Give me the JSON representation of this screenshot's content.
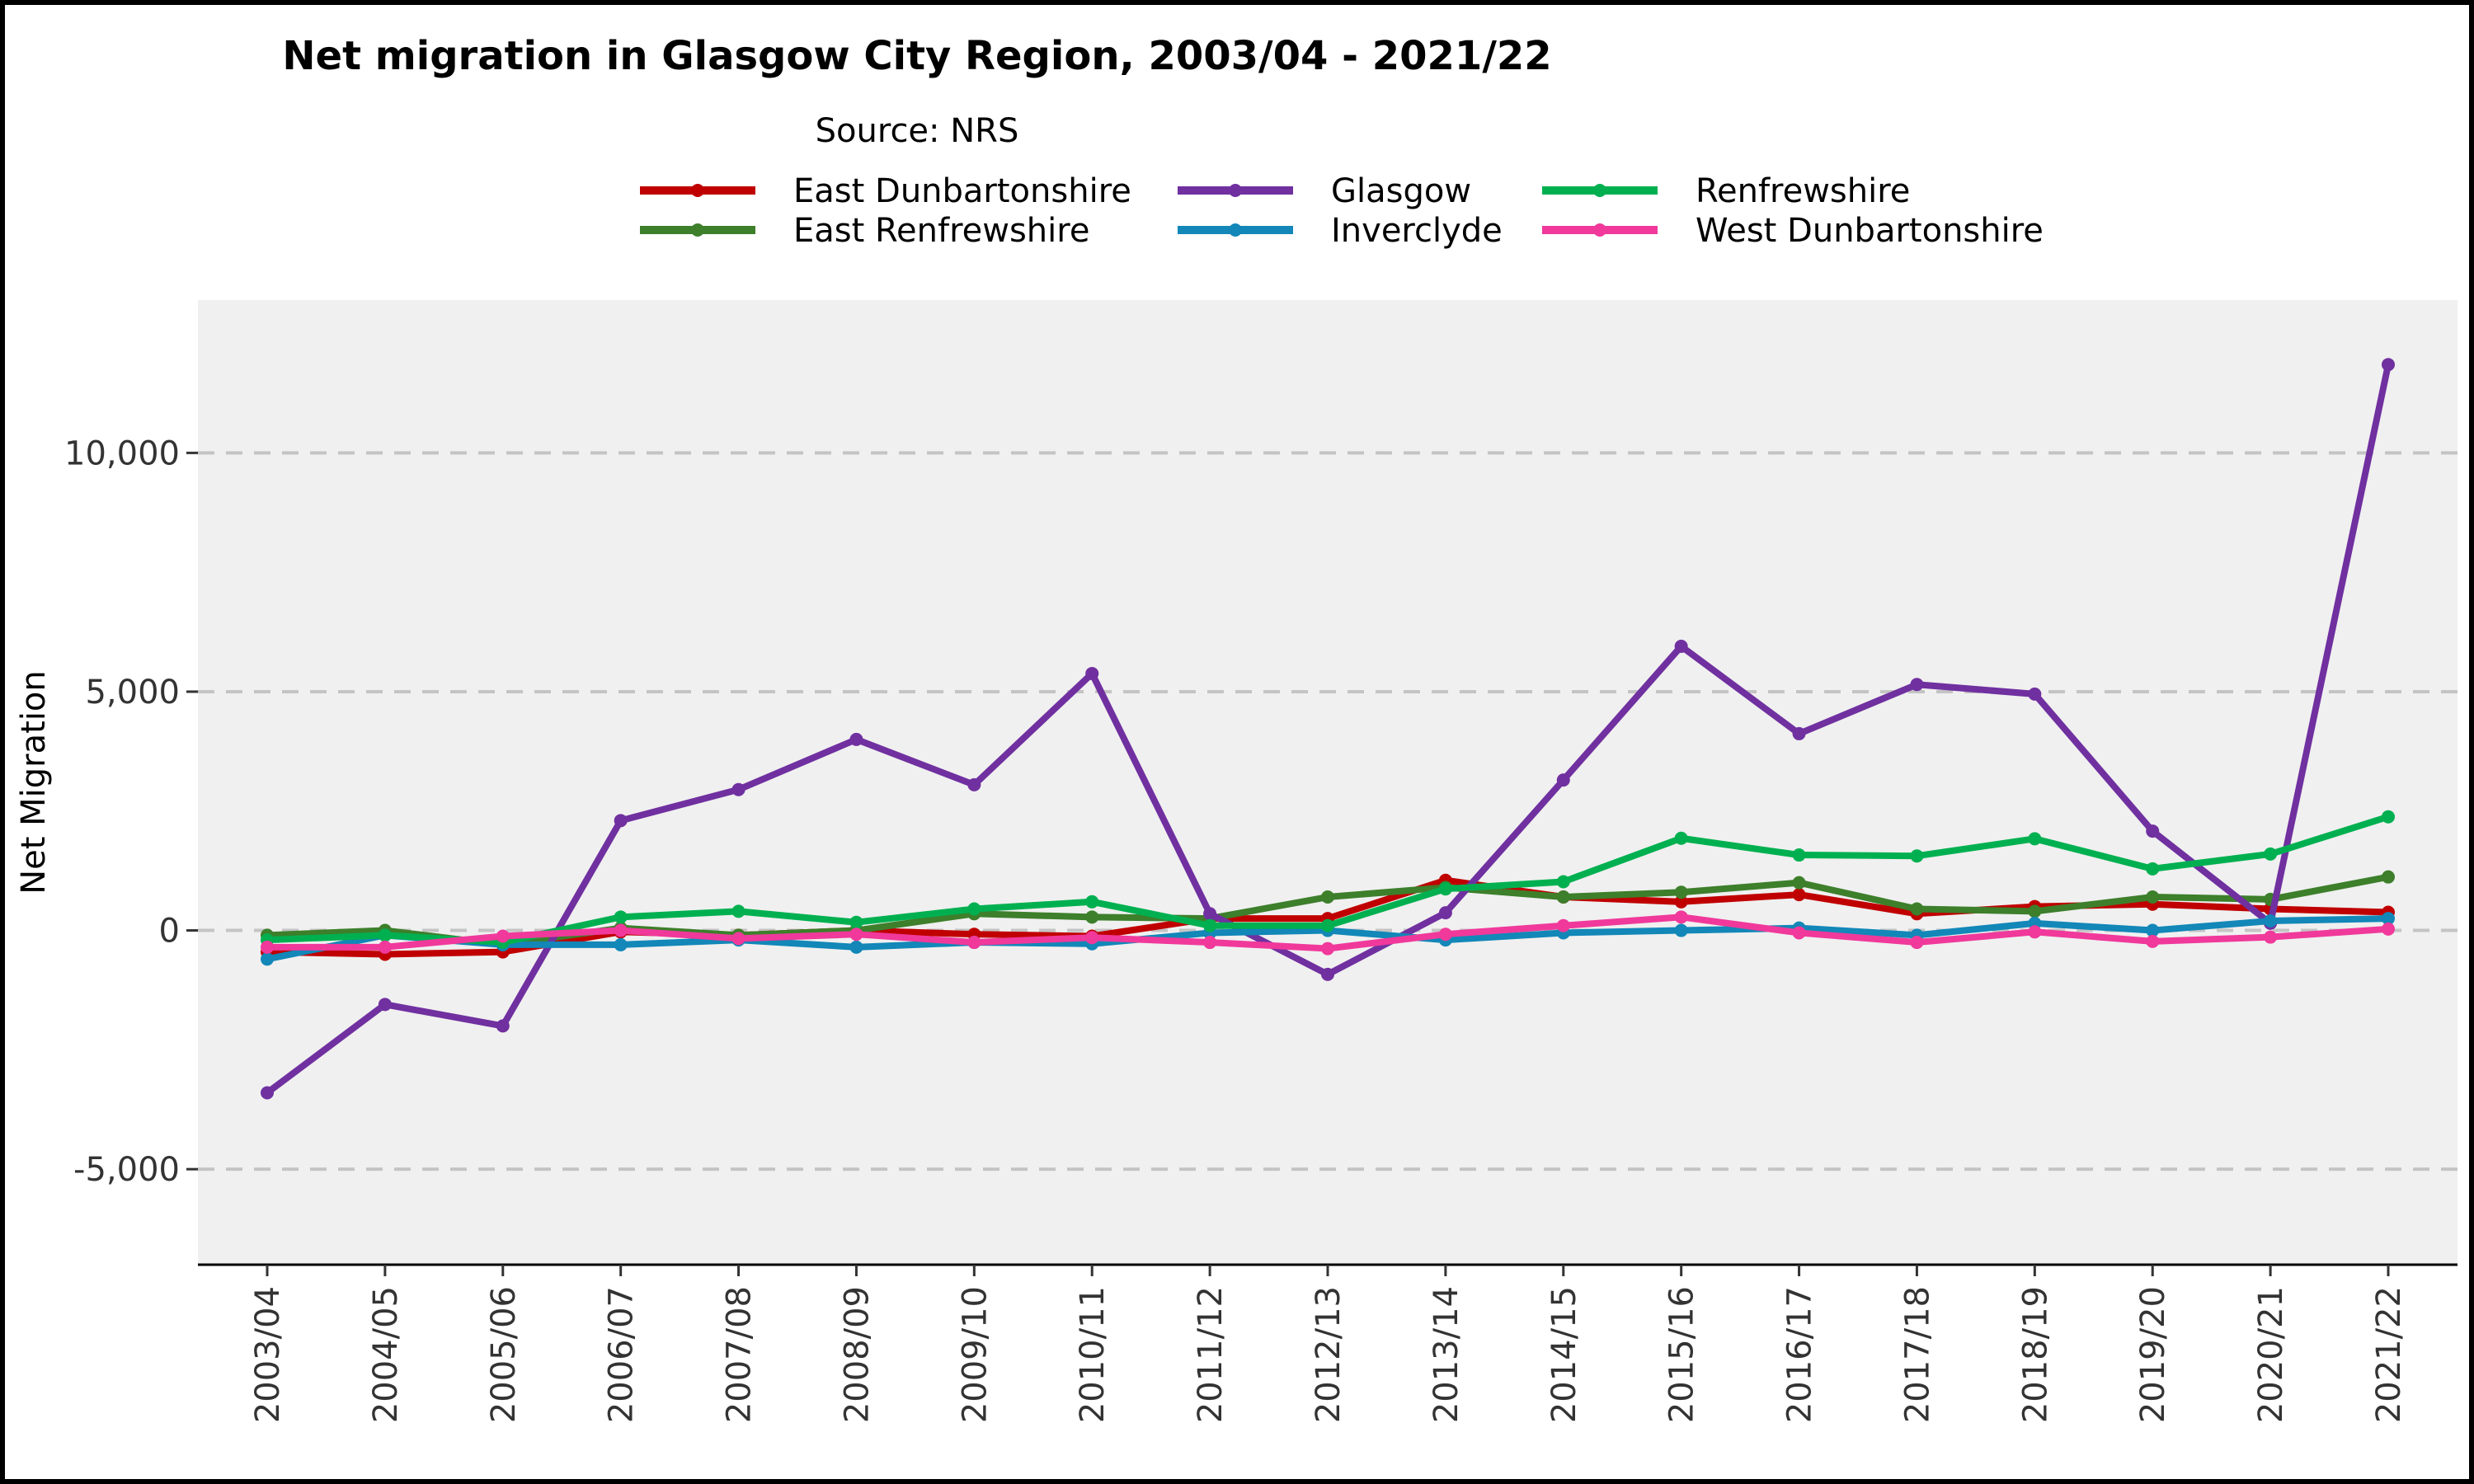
{
  "chart_data": {
    "type": "line",
    "title": "Net migration in Glasgow City Region, 2003/04 - 2021/22",
    "subtitle": "Source: NRS",
    "xlabel": "",
    "ylabel": "Net Migration",
    "ylim": [
      -7000,
      13200
    ],
    "yticks": [
      -5000,
      0,
      5000,
      10000
    ],
    "ytick_labels": [
      "-5,000",
      "0",
      "5,000",
      "10,000"
    ],
    "grid": "horizontal dashed",
    "legend_position": "top",
    "categories": [
      "2003/04",
      "2004/05",
      "2005/06",
      "2006/07",
      "2007/08",
      "2008/09",
      "2009/10",
      "2010/11",
      "2011/12",
      "2012/13",
      "2013/14",
      "2014/15",
      "2015/16",
      "2016/17",
      "2017/18",
      "2018/19",
      "2019/20",
      "2020/21",
      "2021/22"
    ],
    "series": [
      {
        "name": "East Dunbartonshire",
        "color": "#c00000",
        "values": [
          -450,
          -500,
          -450,
          -30,
          -100,
          0,
          -80,
          -120,
          250,
          250,
          1050,
          700,
          600,
          750,
          350,
          500,
          550,
          450,
          380
        ]
      },
      {
        "name": "East Renfrewshire",
        "color": "#3d7f2b",
        "values": [
          -100,
          0,
          -300,
          50,
          -100,
          0,
          350,
          280,
          250,
          700,
          900,
          700,
          800,
          1000,
          450,
          400,
          700,
          650,
          1120
        ]
      },
      {
        "name": "Glasgow",
        "color": "#7030a0",
        "values": [
          -3400,
          -1550,
          -2000,
          2300,
          2950,
          4000,
          3050,
          5380,
          350,
          -920,
          370,
          3150,
          5950,
          4120,
          5150,
          4950,
          2080,
          150,
          11850
        ]
      },
      {
        "name": "Inverclyde",
        "color": "#1287b8",
        "values": [
          -600,
          -100,
          -300,
          -300,
          -200,
          -350,
          -250,
          -280,
          -50,
          0,
          -200,
          -50,
          0,
          50,
          -100,
          150,
          0,
          200,
          250
        ]
      },
      {
        "name": "Renfrewshire",
        "color": "#00b050",
        "values": [
          -200,
          -100,
          -250,
          280,
          400,
          170,
          450,
          600,
          100,
          100,
          870,
          1020,
          1930,
          1580,
          1560,
          1920,
          1290,
          1600,
          2380
        ]
      },
      {
        "name": "West Dunbartonshire",
        "color": "#f0399b",
        "values": [
          -350,
          -350,
          -120,
          0,
          -170,
          -80,
          -250,
          -150,
          -250,
          -380,
          -80,
          100,
          280,
          -50,
          -250,
          -30,
          -230,
          -140,
          30
        ]
      }
    ]
  }
}
